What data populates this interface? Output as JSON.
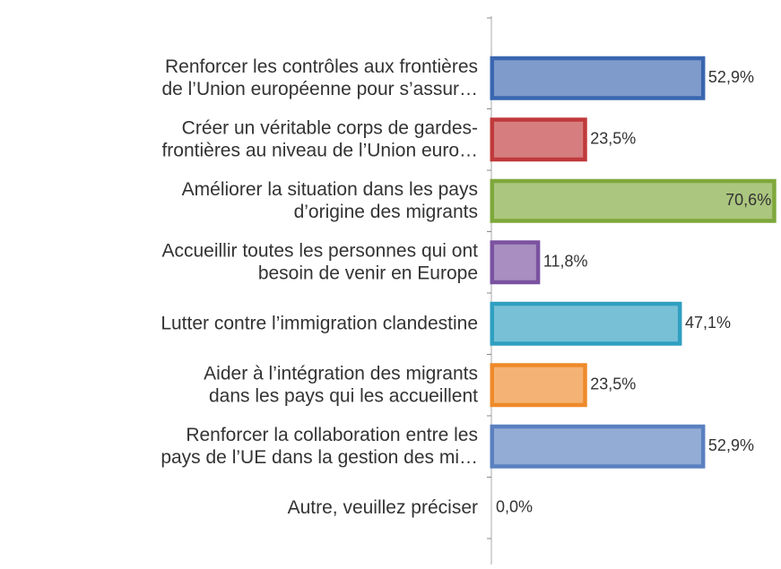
{
  "chart_data": {
    "type": "barh",
    "categories": [
      "Renforcer les contrôles aux frontières\nde l’Union européenne pour s’assur…",
      "Créer un véritable corps de gardes-\nfrontières au niveau de l’Union euro…",
      "Améliorer la situation dans les pays\nd’origine des migrants",
      "Accueillir toutes les personnes qui ont\nbesoin de venir en Europe",
      "Lutter contre l’immigration clandestine",
      "Aider à l’intégration des migrants\ndans les pays qui les accueillent",
      "Renforcer la collaboration entre les\npays de l’UE dans la gestion des mi…",
      "Autre, veuillez préciser"
    ],
    "values": [
      52.9,
      23.5,
      70.6,
      11.8,
      47.1,
      23.5,
      52.9,
      0.0
    ],
    "value_labels": [
      "52,9%",
      "23,5%",
      "70,6%",
      "11,8%",
      "47,1%",
      "23,5%",
      "52,9%",
      "0,0%"
    ],
    "colors": [
      "#3a66b0",
      "#c0393b",
      "#7ea83a",
      "#7a52a0",
      "#2e9fc0",
      "#ee8a2a",
      "#5a80c0",
      "#888888"
    ],
    "xlim": [
      0,
      71
    ]
  }
}
